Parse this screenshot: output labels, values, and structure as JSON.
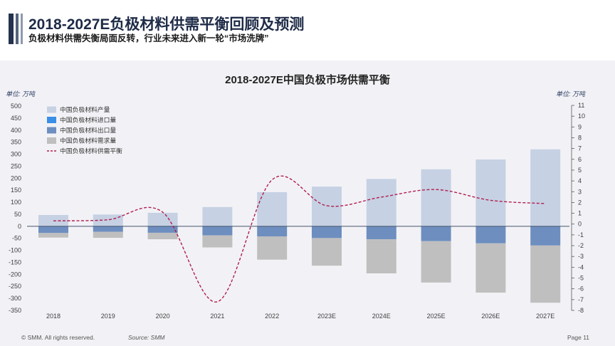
{
  "header": {
    "title": "2018-2027E负极材料供需平衡回顾及预测",
    "subtitle": "负极材料供需失衡局面反转，行业未来进入新一轮“市场洗牌”"
  },
  "chart_data": {
    "type": "bar",
    "stacked": true,
    "title": "2018-2027E中国负极市场供需平衡",
    "ylabel": "单位: 万吨",
    "y2label": "单位: 万吨",
    "xlabel": "",
    "ylim": [
      -350,
      500
    ],
    "y2lim": [
      -8,
      11
    ],
    "yticks": [
      500,
      450,
      400,
      350,
      300,
      250,
      200,
      150,
      100,
      50,
      0,
      -50,
      -100,
      -150,
      -200,
      -250,
      -300,
      -350
    ],
    "y2ticks": [
      11,
      10,
      9,
      8,
      7,
      6,
      5,
      4,
      3,
      2,
      1,
      0,
      -1,
      -2,
      -3,
      -4,
      -5,
      -6,
      -7,
      -8
    ],
    "categories": [
      "2018",
      "2019",
      "2020",
      "2021",
      "2022",
      "2023E",
      "2024E",
      "2025E",
      "2026E",
      "2027E"
    ],
    "series": [
      {
        "name": "中国负极材料产量",
        "type": "bar",
        "axis": "left",
        "color": "#c6d1e4",
        "values": [
          47,
          49,
          56,
          80,
          142,
          165,
          197,
          237,
          278,
          320
        ]
      },
      {
        "name": "中国负极材料进口量",
        "type": "bar",
        "axis": "left",
        "color": "#3a8ee6",
        "values": [
          0,
          0,
          0,
          0,
          0,
          0,
          0,
          0,
          0,
          0
        ]
      },
      {
        "name": "中国负极材料出口量",
        "type": "bar",
        "axis": "left",
        "color": "#6d8ebf",
        "values": [
          -28,
          -23,
          -27,
          -38,
          -42,
          -49,
          -54,
          -62,
          -71,
          -80
        ]
      },
      {
        "name": "中国负极材料需求量",
        "type": "bar",
        "axis": "left",
        "color": "#bfbfbf",
        "values": [
          -19,
          -25,
          -27,
          -50,
          -97,
          -115,
          -142,
          -172,
          -205,
          -238
        ]
      },
      {
        "name": "中国负极材料供需平衡",
        "type": "line",
        "axis": "right",
        "color": "#b21d4c",
        "style": "dashed",
        "smooth": true,
        "values": [
          0.3,
          0.4,
          1.1,
          -7.2,
          4.1,
          1.7,
          2.5,
          3.2,
          2.2,
          1.9
        ]
      }
    ],
    "legend": "top-left",
    "grid": false
  },
  "footer": {
    "copyright": "© SMM. All rights reserved.",
    "source": "Source: SMM",
    "page": "Page 11"
  }
}
